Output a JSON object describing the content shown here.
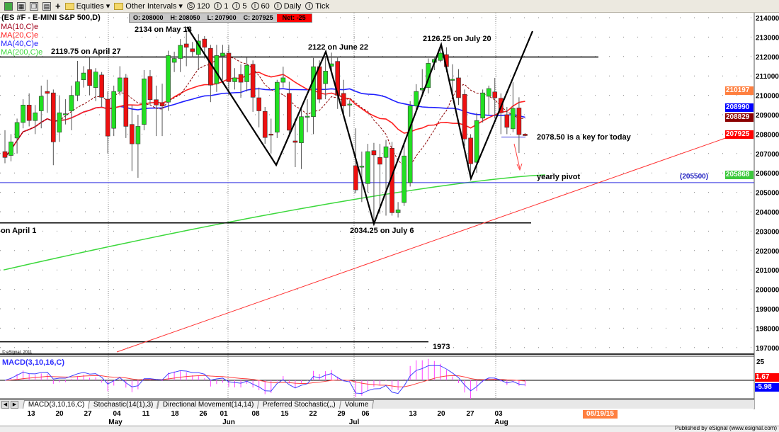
{
  "toolbar": {
    "items": [
      "Equities",
      "Other Intervals",
      "120",
      "1",
      "5",
      "60",
      "Daily",
      "Tick"
    ]
  },
  "header": {
    "symbol": "(ES #F - E-MINI S&P 500,D)",
    "open": "O: 208000",
    "high": "H: 208050",
    "low": "L: 207900",
    "close": "C: 207925",
    "net": "Net: -25"
  },
  "studies": [
    {
      "label": "MA(10,C)e",
      "color": "#a0001a"
    },
    {
      "label": "MA(20,C)e",
      "color": "#ff2020"
    },
    {
      "label": "MA(40,C)e",
      "color": "#2020ff"
    },
    {
      "label": "MA(200,C)e",
      "color": "#3cd83c"
    }
  ],
  "annotations": {
    "may18": "2134 on May 18",
    "april27": "2119.75 on April 27",
    "june22": "2122 on June 22",
    "july20": "2126.25 on July 20",
    "july6": "2034.25 on July 6",
    "april1": "on April 1",
    "key_today": "2078.50 is a key for today",
    "yearly_pivot": "yearly pivot",
    "pivot_value": "(205500)",
    "level_1973": "1973",
    "copyright": "© eSignal, 2011"
  },
  "price_axis": [
    "214000",
    "213000",
    "212000",
    "211000",
    "210000",
    "209000",
    "208000",
    "207000",
    "206000",
    "205000",
    "204000",
    "203000",
    "202000",
    "201000",
    "200000",
    "199000",
    "198000",
    "197000"
  ],
  "price_badges": [
    {
      "value": "210197",
      "color": "#ff7f3f"
    },
    {
      "value": "208990",
      "color": "#0000ff"
    },
    {
      "value": "208829",
      "color": "#8b0000"
    },
    {
      "value": "207925",
      "color": "#ff0000"
    },
    {
      "value": "205868",
      "color": "#3cc83c"
    }
  ],
  "macd": {
    "label": "MACD(3,10,16,C)",
    "scale_top": "25",
    "signal_value": "1.67",
    "macd_value": "-5.98"
  },
  "tabs": [
    "MACD(3,10,16,C)",
    "Stochastic(14(1),3)",
    "Directional Movement(14,14)",
    "Preferred Stochastic(,,)",
    "Volume"
  ],
  "date_badge": "08/19/15",
  "footer": "Published by eSignal (www.esignal.com)",
  "chart_data": {
    "type": "candlestick",
    "interval": "Daily",
    "x_ticks": [
      "13",
      "20",
      "27",
      "04",
      "11",
      "18",
      "26",
      "01",
      "08",
      "15",
      "22",
      "29",
      "06",
      "13",
      "20",
      "27",
      "03"
    ],
    "months": [
      "May",
      "Jun",
      "Jul",
      "Aug"
    ],
    "ylim": [
      1965,
      2145
    ],
    "grid": true,
    "ohlc": [
      [
        2071,
        2082,
        2065,
        2068
      ],
      [
        2069,
        2080,
        2066,
        2076
      ],
      [
        2078,
        2088,
        2070,
        2086
      ],
      [
        2086,
        2098,
        2083,
        2095
      ],
      [
        2095,
        2101,
        2084,
        2087
      ],
      [
        2087,
        2095,
        2080,
        2091
      ],
      [
        2092,
        2105,
        2083,
        2099.5
      ],
      [
        2102,
        2108,
        2091,
        2101
      ],
      [
        2101.25,
        2103,
        2064,
        2076
      ],
      [
        2081,
        2100,
        2076,
        2091
      ],
      [
        2090,
        2098,
        2085,
        2090.5
      ],
      [
        2092,
        2105,
        2082,
        2100
      ],
      [
        2100,
        2117.75,
        2097,
        2107
      ],
      [
        2108,
        2115,
        2104,
        2111.5
      ],
      [
        2113.25,
        2119.75,
        2100,
        2105
      ],
      [
        2104,
        2114,
        2097,
        2112
      ],
      [
        2110.5,
        2112,
        2094,
        2099
      ],
      [
        2098,
        2102,
        2070,
        2079
      ],
      [
        2083,
        2105,
        2079,
        2102
      ],
      [
        2102,
        2115,
        2100,
        2109
      ],
      [
        2109,
        2111,
        2078,
        2084
      ],
      [
        2085,
        2095,
        2061,
        2075
      ],
      [
        2075,
        2090,
        2057.5,
        2084
      ],
      [
        2085,
        2113,
        2082,
        2108.5
      ],
      [
        2109.75,
        2113,
        2095,
        2097.75
      ],
      [
        2097.75,
        2105,
        2079,
        2095
      ],
      [
        2096,
        2106,
        2079,
        2094.5
      ],
      [
        2096.5,
        2123,
        2092,
        2120.5
      ],
      [
        2117,
        2122.5,
        2112,
        2119
      ],
      [
        2119,
        2129,
        2112,
        2125.75
      ],
      [
        2126.5,
        2134,
        2115,
        2124.75
      ],
      [
        2124,
        2127.5,
        2119.5,
        2122.5
      ],
      [
        2121,
        2131.5,
        2113,
        2128
      ],
      [
        2129,
        2130.5,
        2119,
        2124.75
      ],
      [
        2124.25,
        2126,
        2096.5,
        2105.25
      ],
      [
        2106,
        2126,
        2101.75,
        2120.5
      ],
      [
        2120.25,
        2126,
        2108,
        2121.75
      ],
      [
        2121.75,
        2126,
        2100,
        2107
      ],
      [
        2107,
        2114,
        2103,
        2109
      ],
      [
        2110.75,
        2116,
        2098.75,
        2106.75
      ],
      [
        2107,
        2119.5,
        2102,
        2115.5
      ],
      [
        2116,
        2118,
        2091.5,
        2099
      ],
      [
        2098.75,
        2104,
        2083.5,
        2092
      ],
      [
        2091.75,
        2094,
        2075,
        2078.25
      ],
      [
        2080,
        2088,
        2070,
        2079.75
      ],
      [
        2081,
        2108,
        2078,
        2106.75
      ],
      [
        2106.75,
        2114.75,
        2104,
        2109
      ],
      [
        2101,
        2107,
        2080,
        2082
      ],
      [
        2076.5,
        2088,
        2063,
        2075.75
      ],
      [
        2075.5,
        2093,
        2062,
        2089
      ],
      [
        2089,
        2098,
        2081,
        2089.25
      ],
      [
        2089,
        2119.25,
        2080,
        2114.75
      ],
      [
        2114.75,
        2118,
        2096,
        2098
      ],
      [
        2106,
        2120.25,
        2098,
        2112.5
      ],
      [
        2115,
        2122,
        2112,
        2116.25
      ],
      [
        2117.5,
        2120,
        2093,
        2100
      ],
      [
        2101,
        2108,
        2090,
        2094.5
      ],
      [
        2095,
        2097.5,
        2089,
        2095.5
      ],
      [
        2063.75,
        2083,
        2049.5,
        2051.25
      ],
      [
        2063,
        2071,
        2045,
        2063.5
      ],
      [
        2054.5,
        2075,
        2050,
        2071
      ],
      [
        2071.5,
        2075.5,
        2034.25,
        2069.25
      ],
      [
        2068,
        2075,
        2039,
        2064.5
      ],
      [
        2068,
        2077,
        2038,
        2073.5
      ],
      [
        2072.75,
        2076,
        2038,
        2039.5
      ],
      [
        2039.5,
        2045,
        2037,
        2041
      ],
      [
        2044.75,
        2075,
        2043,
        2068.75
      ],
      [
        2055,
        2097,
        2053,
        2094.5
      ],
      [
        2094.5,
        2105.75,
        2092,
        2102
      ],
      [
        2102.75,
        2113.5,
        2100,
        2103.75
      ],
      [
        2104,
        2119,
        2101,
        2116.5
      ],
      [
        2117,
        2120,
        2113,
        2118.5
      ],
      [
        2118,
        2126.25,
        2117,
        2121.75
      ],
      [
        2121,
        2124.75,
        2112,
        2114.75
      ],
      [
        2108,
        2116,
        2098,
        2108.25
      ],
      [
        2109,
        2113.5,
        2095,
        2098.75
      ],
      [
        2100.5,
        2103,
        2074,
        2077.5
      ],
      [
        2078,
        2080,
        2057,
        2064.75
      ],
      [
        2065.5,
        2091,
        2060,
        2087
      ],
      [
        2088.25,
        2103,
        2086,
        2101.25
      ],
      [
        2099.5,
        2105,
        2090,
        2103.5
      ],
      [
        2101.75,
        2109,
        2088,
        2098.75
      ],
      [
        2098.5,
        2101,
        2080,
        2091
      ],
      [
        2090,
        2094,
        2080,
        2083.5
      ],
      [
        2082.75,
        2106.75,
        2081,
        2093.25
      ],
      [
        2093.5,
        2099,
        2070.25,
        2079.75
      ],
      [
        2080,
        2080.5,
        2079,
        2079.25
      ]
    ],
    "levels": {
      "resistance": 2119.75,
      "support": 2034.25,
      "yearly_pivot": 2055,
      "key_today": 2078.5,
      "level_1973": 1973
    },
    "ma200_range": [
      2010,
      2059
    ]
  }
}
